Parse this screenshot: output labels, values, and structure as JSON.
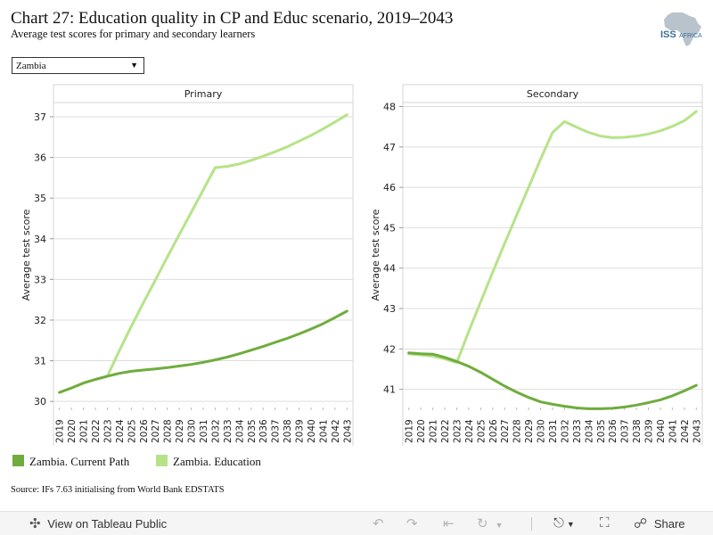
{
  "header": {
    "title": "Chart 27: Education quality in CP and Educ scenario, 2019–2043",
    "subtitle": "Average test scores for primary and secondary learners",
    "logo_text": "ISS",
    "logo_suffix": "AFRICA"
  },
  "filter": {
    "selected": "Zambia"
  },
  "legend": {
    "items": [
      "Zambia. Current Path",
      "Zambia. Education"
    ]
  },
  "source": "Source: IFs 7.63 initialising from World Bank EDSTATS",
  "toolbar": {
    "view_label": "View on Tableau Public",
    "share_label": "Share"
  },
  "colors": {
    "current_path": "#6fac3d",
    "education": "#b6e388",
    "grid": "#dddddd"
  },
  "chart_data": [
    {
      "type": "line",
      "title": "Primary",
      "ylabel": "Average test score",
      "ylim": [
        29.85,
        37.35
      ],
      "yticks": [
        30,
        31,
        32,
        33,
        34,
        35,
        36,
        37
      ],
      "grid": true,
      "x": [
        "2019",
        "2020",
        "2021",
        "2022",
        "2023",
        "2024",
        "2025",
        "2026",
        "2027",
        "2028",
        "2029",
        "2030",
        "2031",
        "2032",
        "2033",
        "2034",
        "2035",
        "2036",
        "2037",
        "2038",
        "2039",
        "2040",
        "2041",
        "2042",
        "2043"
      ],
      "series": [
        {
          "name": "Zambia. Current Path",
          "color": "#6fac3d",
          "values": [
            30.22,
            30.33,
            30.45,
            30.54,
            30.62,
            30.69,
            30.74,
            30.77,
            30.8,
            30.83,
            30.87,
            30.91,
            30.96,
            31.02,
            31.09,
            31.17,
            31.26,
            31.35,
            31.45,
            31.55,
            31.66,
            31.78,
            31.91,
            32.06,
            32.22
          ]
        },
        {
          "name": "Zambia. Education",
          "color": "#b6e388",
          "values": [
            30.22,
            30.33,
            30.45,
            30.54,
            30.62,
            31.25,
            31.85,
            32.42,
            32.98,
            33.55,
            34.1,
            34.65,
            35.2,
            35.75,
            35.78,
            35.84,
            35.93,
            36.03,
            36.14,
            36.26,
            36.4,
            36.54,
            36.7,
            36.87,
            37.05
          ]
        }
      ]
    },
    {
      "type": "line",
      "title": "Secondary",
      "ylabel": "Average test score",
      "ylim": [
        40.55,
        48.1
      ],
      "yticks": [
        41,
        42,
        43,
        44,
        45,
        46,
        47,
        48
      ],
      "grid": true,
      "x": [
        "2019",
        "2020",
        "2021",
        "2022",
        "2023",
        "2024",
        "2025",
        "2026",
        "2027",
        "2028",
        "2029",
        "2030",
        "2031",
        "2032",
        "2033",
        "2034",
        "2035",
        "2036",
        "2037",
        "2038",
        "2039",
        "2040",
        "2041",
        "2042",
        "2043"
      ],
      "series": [
        {
          "name": "Zambia. Current Path",
          "color": "#6fac3d",
          "values": [
            41.9,
            41.88,
            41.87,
            41.79,
            41.69,
            41.57,
            41.42,
            41.25,
            41.08,
            40.93,
            40.8,
            40.69,
            40.63,
            40.58,
            40.54,
            40.52,
            40.52,
            40.53,
            40.56,
            40.61,
            40.67,
            40.74,
            40.84,
            40.96,
            41.1
          ]
        },
        {
          "name": "Zambia. Education",
          "color": "#b6e388",
          "values": [
            41.88,
            41.85,
            41.82,
            41.75,
            41.66,
            42.43,
            43.17,
            43.9,
            44.61,
            45.31,
            46.0,
            46.7,
            47.36,
            47.63,
            47.49,
            47.36,
            47.27,
            47.23,
            47.24,
            47.27,
            47.32,
            47.4,
            47.51,
            47.65,
            47.88
          ]
        }
      ]
    }
  ]
}
